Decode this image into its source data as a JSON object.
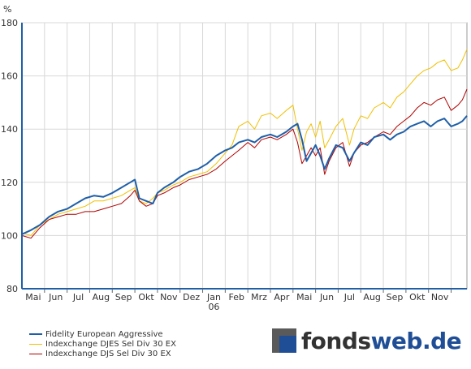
{
  "chart_data": {
    "type": "line",
    "ylabel": "%",
    "ylim": [
      80,
      180
    ],
    "yticks": [
      "80",
      "100",
      "120",
      "140",
      "160",
      "180"
    ],
    "x_range": [
      0,
      19.7
    ],
    "x_labels": [
      {
        "label": "Mai",
        "x": 0.5
      },
      {
        "label": "Jun",
        "x": 1.5
      },
      {
        "label": "Jul",
        "x": 2.5
      },
      {
        "label": "Aug",
        "x": 3.5
      },
      {
        "label": "Sep",
        "x": 4.5
      },
      {
        "label": "Okt",
        "x": 5.5
      },
      {
        "label": "Nov",
        "x": 6.5
      },
      {
        "label": "Dez",
        "x": 7.5
      },
      {
        "label": "Jan",
        "x": 8.5
      },
      {
        "label": "Feb",
        "x": 9.5
      },
      {
        "label": "Mrz",
        "x": 10.5
      },
      {
        "label": "Apr",
        "x": 11.5
      },
      {
        "label": "Mai",
        "x": 12.5
      },
      {
        "label": "Jun",
        "x": 13.5
      },
      {
        "label": "Jul",
        "x": 14.5
      },
      {
        "label": "Aug",
        "x": 15.5
      },
      {
        "label": "Sep",
        "x": 16.5
      },
      {
        "label": "Okt",
        "x": 17.5
      },
      {
        "label": "Nov",
        "x": 18.5
      }
    ],
    "year_label": {
      "label": "06",
      "x": 8.5
    },
    "grid": true,
    "legend_position": "bottom-left",
    "series": [
      {
        "name": "Fidelity European Aggressive",
        "color": "#1f5fa8",
        "points": [
          [
            0,
            100.5
          ],
          [
            0.4,
            102
          ],
          [
            0.8,
            104
          ],
          [
            1.2,
            107
          ],
          [
            1.6,
            109
          ],
          [
            2,
            110
          ],
          [
            2.4,
            112
          ],
          [
            2.8,
            114
          ],
          [
            3.2,
            115
          ],
          [
            3.6,
            114.5
          ],
          [
            4,
            116
          ],
          [
            4.4,
            118
          ],
          [
            4.8,
            120
          ],
          [
            5.0,
            121
          ],
          [
            5.2,
            114
          ],
          [
            5.5,
            113
          ],
          [
            5.8,
            112
          ],
          [
            6,
            116
          ],
          [
            6.3,
            118
          ],
          [
            6.7,
            120
          ],
          [
            7,
            122
          ],
          [
            7.4,
            124
          ],
          [
            7.8,
            125
          ],
          [
            8.2,
            127
          ],
          [
            8.6,
            130
          ],
          [
            9,
            132
          ],
          [
            9.3,
            133
          ],
          [
            9.6,
            135
          ],
          [
            10,
            136
          ],
          [
            10.3,
            135
          ],
          [
            10.6,
            137
          ],
          [
            11,
            138
          ],
          [
            11.3,
            137
          ],
          [
            11.7,
            139
          ],
          [
            12,
            141
          ],
          [
            12.2,
            142
          ],
          [
            12.4,
            136
          ],
          [
            12.6,
            128
          ],
          [
            12.8,
            131
          ],
          [
            13,
            134
          ],
          [
            13.2,
            130
          ],
          [
            13.4,
            125
          ],
          [
            13.6,
            129
          ],
          [
            13.9,
            134
          ],
          [
            14.2,
            133
          ],
          [
            14.5,
            128
          ],
          [
            14.7,
            131
          ],
          [
            15,
            135
          ],
          [
            15.3,
            134
          ],
          [
            15.6,
            137
          ],
          [
            16,
            138
          ],
          [
            16.3,
            136
          ],
          [
            16.6,
            138
          ],
          [
            16.9,
            139
          ],
          [
            17.2,
            141
          ],
          [
            17.5,
            142
          ],
          [
            17.8,
            143
          ],
          [
            18.1,
            141
          ],
          [
            18.4,
            143
          ],
          [
            18.7,
            144
          ],
          [
            19,
            141
          ],
          [
            19.3,
            142
          ],
          [
            19.5,
            143
          ],
          [
            19.7,
            145
          ]
        ]
      },
      {
        "name": "Indexchange DJES Sel Div 30 EX",
        "color": "#f0c000",
        "points": [
          [
            0,
            101
          ],
          [
            0.4,
            100
          ],
          [
            0.8,
            104
          ],
          [
            1.2,
            106
          ],
          [
            1.6,
            108
          ],
          [
            2,
            109
          ],
          [
            2.4,
            110
          ],
          [
            2.8,
            111
          ],
          [
            3.2,
            113
          ],
          [
            3.6,
            113
          ],
          [
            4,
            114
          ],
          [
            4.4,
            115
          ],
          [
            4.8,
            117
          ],
          [
            5.0,
            118
          ],
          [
            5.2,
            113
          ],
          [
            5.5,
            112
          ],
          [
            5.8,
            114
          ],
          [
            6,
            116
          ],
          [
            6.3,
            117
          ],
          [
            6.7,
            119
          ],
          [
            7,
            120
          ],
          [
            7.4,
            122
          ],
          [
            7.8,
            123
          ],
          [
            8.2,
            124
          ],
          [
            8.6,
            127
          ],
          [
            9,
            131
          ],
          [
            9.3,
            134
          ],
          [
            9.6,
            141
          ],
          [
            10,
            143
          ],
          [
            10.3,
            140
          ],
          [
            10.6,
            145
          ],
          [
            11,
            146
          ],
          [
            11.3,
            144
          ],
          [
            11.7,
            147
          ],
          [
            12,
            149
          ],
          [
            12.2,
            140
          ],
          [
            12.4,
            132
          ],
          [
            12.6,
            139
          ],
          [
            12.8,
            142
          ],
          [
            13,
            137
          ],
          [
            13.2,
            143
          ],
          [
            13.4,
            133
          ],
          [
            13.6,
            136
          ],
          [
            13.9,
            141
          ],
          [
            14.2,
            144
          ],
          [
            14.5,
            134
          ],
          [
            14.7,
            140
          ],
          [
            15,
            145
          ],
          [
            15.3,
            144
          ],
          [
            15.6,
            148
          ],
          [
            16,
            150
          ],
          [
            16.3,
            148
          ],
          [
            16.6,
            152
          ],
          [
            16.9,
            154
          ],
          [
            17.2,
            157
          ],
          [
            17.5,
            160
          ],
          [
            17.8,
            162
          ],
          [
            18.1,
            163
          ],
          [
            18.4,
            165
          ],
          [
            18.7,
            166
          ],
          [
            19,
            162
          ],
          [
            19.3,
            163
          ],
          [
            19.5,
            166
          ],
          [
            19.7,
            170
          ]
        ]
      },
      {
        "name": "Indexchange DJS Sel Div 30 EX",
        "color": "#b00000",
        "points": [
          [
            0,
            100
          ],
          [
            0.4,
            99
          ],
          [
            0.8,
            103
          ],
          [
            1.2,
            106
          ],
          [
            1.6,
            107
          ],
          [
            2,
            108
          ],
          [
            2.4,
            108
          ],
          [
            2.8,
            109
          ],
          [
            3.2,
            109
          ],
          [
            3.6,
            110
          ],
          [
            4,
            111
          ],
          [
            4.4,
            112
          ],
          [
            4.8,
            115
          ],
          [
            5.0,
            117
          ],
          [
            5.2,
            113
          ],
          [
            5.5,
            111
          ],
          [
            5.8,
            112
          ],
          [
            6,
            115
          ],
          [
            6.3,
            116
          ],
          [
            6.7,
            118
          ],
          [
            7,
            119
          ],
          [
            7.4,
            121
          ],
          [
            7.8,
            122
          ],
          [
            8.2,
            123
          ],
          [
            8.6,
            125
          ],
          [
            9,
            128
          ],
          [
            9.3,
            130
          ],
          [
            9.6,
            132
          ],
          [
            10,
            135
          ],
          [
            10.3,
            133
          ],
          [
            10.6,
            136
          ],
          [
            11,
            137
          ],
          [
            11.3,
            136
          ],
          [
            11.7,
            138
          ],
          [
            12,
            140
          ],
          [
            12.2,
            135
          ],
          [
            12.4,
            127
          ],
          [
            12.6,
            130
          ],
          [
            12.8,
            133
          ],
          [
            13,
            130
          ],
          [
            13.2,
            133
          ],
          [
            13.4,
            123
          ],
          [
            13.6,
            128
          ],
          [
            13.9,
            133
          ],
          [
            14.2,
            135
          ],
          [
            14.5,
            126
          ],
          [
            14.7,
            131
          ],
          [
            15,
            134
          ],
          [
            15.3,
            135
          ],
          [
            15.6,
            137
          ],
          [
            16,
            139
          ],
          [
            16.3,
            138
          ],
          [
            16.6,
            141
          ],
          [
            16.9,
            143
          ],
          [
            17.2,
            145
          ],
          [
            17.5,
            148
          ],
          [
            17.8,
            150
          ],
          [
            18.1,
            149
          ],
          [
            18.4,
            151
          ],
          [
            18.7,
            152
          ],
          [
            19,
            147
          ],
          [
            19.3,
            149
          ],
          [
            19.5,
            151
          ],
          [
            19.7,
            155
          ]
        ]
      }
    ]
  },
  "logo": {
    "part1": "fonds",
    "part2": "web.de"
  }
}
